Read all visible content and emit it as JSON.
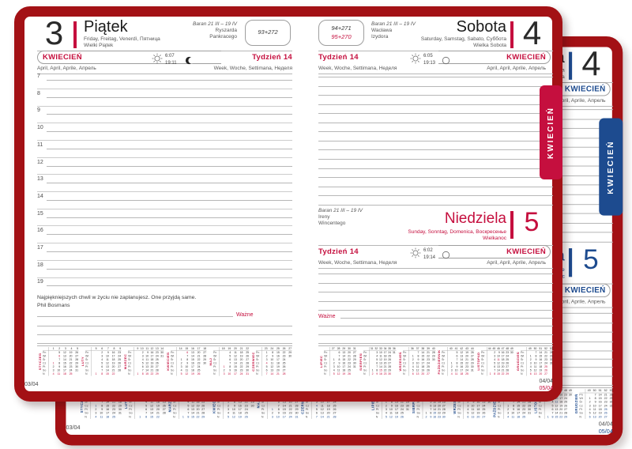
{
  "colors": {
    "cover_border": "#a31115",
    "front_accent": "#c50f3e",
    "back_accent": "#1d4b8f"
  },
  "tab": {
    "label": "KWIECIEŃ"
  },
  "left_page": {
    "day_number": "3",
    "day_name": "Piątek",
    "day_names_langs": "Friday, Freitag, Venerdì, Пятница",
    "holiday": "Wielki Piątek",
    "zodiac": "Baran 21 III – 19 IV",
    "nameday_1": "Ryszarda",
    "nameday_2": "Pankracego",
    "day_of_year": "93+272",
    "month_label": "KWIECIEŃ",
    "month_langs": "April, April, Aprile, Апрель",
    "week_label": "Tydzień 14",
    "week_langs": "Week, Woche, Settimana, Неделя",
    "sunrise": "6:07",
    "sunset": "19:11",
    "hours": [
      7,
      8,
      9,
      10,
      11,
      12,
      13,
      14,
      15,
      16,
      17,
      18,
      19
    ],
    "quote": "Najpiękniejszych chwil w życiu nie zaplanujesz. One przyjdą same.",
    "quote_author": "Phil Bosmans",
    "important_label": "Ważne",
    "footer": "03/04"
  },
  "right_page": {
    "day_of_year_black": "94+271",
    "day_of_year_red": "95+270",
    "zodiac": "Baran 21 III – 19 IV",
    "saturday": {
      "number": "4",
      "name": "Sobota",
      "names_langs": "Saturday, Samstag, Sabato, Суббота",
      "holiday": "Wielka Sobota",
      "nameday_1": "Wacława",
      "nameday_2": "Izydora",
      "sunrise": "6:05",
      "sunset": "19:13"
    },
    "sunday": {
      "number": "5",
      "name": "Niedziela",
      "names_langs": "Sunday, Sonntag, Domenica, Воскресенье",
      "holiday": "Wielkanoc",
      "zodiac": "Baran 21 III – 19 IV",
      "nameday_1": "Ireny",
      "nameday_2": "Wincentego",
      "sunrise": "6:02",
      "sunset": "19:14"
    },
    "month_label": "KWIECIEŃ",
    "month_langs": "April, April, Aprile, Апрель",
    "week_label": "Tydzień 14",
    "week_langs": "Week, Woche, Settimana, Неделя",
    "important_label": "Ważne",
    "footer_black": "04/04",
    "footer_red": "05/04"
  },
  "mini_calendars": {
    "day_labels": [
      "Pn",
      "Wt",
      "Śr",
      "Cz",
      "Pt",
      "So",
      "N"
    ],
    "left_months": [
      {
        "name": "STYCZEŃ",
        "weeks": [
          "1",
          "2",
          "3",
          "4",
          "5"
        ],
        "red": [
          "1",
          "6"
        ],
        "rows": [
          [
            "",
            "5",
            "12",
            "19",
            "26"
          ],
          [
            "",
            "6",
            "13",
            "20",
            "27"
          ],
          [
            "",
            "7",
            "14",
            "21",
            "28"
          ],
          [
            "1",
            "8",
            "15",
            "22",
            "29"
          ],
          [
            "2",
            "9",
            "16",
            "23",
            "30"
          ],
          [
            "3",
            "10",
            "17",
            "24",
            "31"
          ],
          [
            "4",
            "11",
            "18",
            "25",
            ""
          ]
        ]
      },
      {
        "name": "LUTY",
        "weeks": [
          "5",
          "6",
          "7",
          "8",
          "9"
        ],
        "red": [],
        "rows": [
          [
            "",
            "2",
            "9",
            "16",
            "23"
          ],
          [
            "",
            "3",
            "10",
            "17",
            "24"
          ],
          [
            "",
            "4",
            "11",
            "18",
            "25"
          ],
          [
            "",
            "5",
            "12",
            "19",
            "26"
          ],
          [
            "",
            "6",
            "13",
            "20",
            "27"
          ],
          [
            "",
            "7",
            "14",
            "21",
            "28"
          ],
          [
            "1",
            "8",
            "15",
            "22",
            ""
          ]
        ]
      },
      {
        "name": "MARZEC",
        "weeks": [
          "9",
          "10",
          "11",
          "12",
          "13",
          "14"
        ],
        "red": [],
        "rows": [
          [
            "",
            "2",
            "9",
            "16",
            "23",
            "30"
          ],
          [
            "",
            "3",
            "10",
            "17",
            "24",
            "31"
          ],
          [
            "",
            "4",
            "11",
            "18",
            "25",
            ""
          ],
          [
            "",
            "5",
            "12",
            "19",
            "26",
            ""
          ],
          [
            "",
            "6",
            "13",
            "20",
            "27",
            ""
          ],
          [
            "",
            "7",
            "14",
            "21",
            "28",
            ""
          ],
          [
            "1",
            "8",
            "15",
            "22",
            "29",
            ""
          ]
        ]
      },
      {
        "name": "KWIECIEŃ",
        "weeks": [
          "14",
          "15",
          "16",
          "17",
          "18"
        ],
        "red": [
          "6"
        ],
        "rows": [
          [
            "",
            "6",
            "13",
            "20",
            "27"
          ],
          [
            "",
            "7",
            "14",
            "21",
            "28"
          ],
          [
            "1",
            "8",
            "15",
            "22",
            "29"
          ],
          [
            "2",
            "9",
            "16",
            "23",
            "30"
          ],
          [
            "3",
            "10",
            "17",
            "24",
            ""
          ],
          [
            "4",
            "11",
            "18",
            "25",
            ""
          ],
          [
            "5",
            "12",
            "19",
            "26",
            ""
          ]
        ]
      },
      {
        "name": "MAJ",
        "weeks": [
          "18",
          "19",
          "20",
          "21",
          "22"
        ],
        "red": [
          "1"
        ],
        "rows": [
          [
            "",
            "4",
            "11",
            "18",
            "25"
          ],
          [
            "",
            "5",
            "12",
            "19",
            "26"
          ],
          [
            "",
            "6",
            "13",
            "20",
            "27"
          ],
          [
            "",
            "7",
            "14",
            "21",
            "28"
          ],
          [
            "1",
            "8",
            "15",
            "22",
            "29"
          ],
          [
            "2",
            "9",
            "16",
            "23",
            "30"
          ],
          [
            "3",
            "10",
            "17",
            "24",
            "31"
          ]
        ]
      },
      {
        "name": "CZERWIEC",
        "weeks": [
          "23",
          "24",
          "25",
          "26",
          "27"
        ],
        "red": [
          "4"
        ],
        "rows": [
          [
            "1",
            "8",
            "15",
            "22",
            "29"
          ],
          [
            "2",
            "9",
            "16",
            "23",
            "30"
          ],
          [
            "3",
            "10",
            "17",
            "24",
            ""
          ],
          [
            "4",
            "11",
            "18",
            "25",
            ""
          ],
          [
            "5",
            "12",
            "19",
            "26",
            ""
          ],
          [
            "6",
            "13",
            "20",
            "27",
            ""
          ],
          [
            "7",
            "14",
            "21",
            "28",
            ""
          ]
        ]
      }
    ],
    "right_months": [
      {
        "name": "LIPIEC",
        "weeks": [
          "27",
          "28",
          "29",
          "30",
          "31"
        ],
        "red": [],
        "rows": [
          [
            "",
            "6",
            "13",
            "20",
            "27"
          ],
          [
            "",
            "7",
            "14",
            "21",
            "28"
          ],
          [
            "1",
            "8",
            "15",
            "22",
            "29"
          ],
          [
            "2",
            "9",
            "16",
            "23",
            "30"
          ],
          [
            "3",
            "10",
            "17",
            "24",
            "31"
          ],
          [
            "4",
            "11",
            "18",
            "25",
            ""
          ],
          [
            "5",
            "12",
            "19",
            "26",
            ""
          ]
        ]
      },
      {
        "name": "SIERPIEŃ",
        "weeks": [
          "31",
          "32",
          "33",
          "34",
          "35",
          "36"
        ],
        "red": [
          "15"
        ],
        "rows": [
          [
            "",
            "3",
            "10",
            "17",
            "24",
            "31"
          ],
          [
            "",
            "4",
            "11",
            "18",
            "25",
            ""
          ],
          [
            "",
            "5",
            "12",
            "19",
            "26",
            ""
          ],
          [
            "",
            "6",
            "13",
            "20",
            "27",
            ""
          ],
          [
            "",
            "7",
            "14",
            "21",
            "28",
            ""
          ],
          [
            "1",
            "8",
            "15",
            "22",
            "29",
            ""
          ],
          [
            "2",
            "9",
            "16",
            "23",
            "30",
            ""
          ]
        ]
      },
      {
        "name": "WRZESIEŃ",
        "weeks": [
          "36",
          "37",
          "38",
          "39",
          "40"
        ],
        "red": [],
        "rows": [
          [
            "",
            "7",
            "14",
            "21",
            "28"
          ],
          [
            "1",
            "8",
            "15",
            "22",
            "29"
          ],
          [
            "2",
            "9",
            "16",
            "23",
            "30"
          ],
          [
            "3",
            "10",
            "17",
            "24",
            ""
          ],
          [
            "4",
            "11",
            "18",
            "25",
            ""
          ],
          [
            "5",
            "12",
            "19",
            "26",
            ""
          ],
          [
            "6",
            "13",
            "20",
            "27",
            ""
          ]
        ]
      },
      {
        "name": "PAŹDZIERNIK",
        "weeks": [
          "40",
          "41",
          "42",
          "43",
          "44"
        ],
        "red": [],
        "rows": [
          [
            "",
            "5",
            "12",
            "19",
            "26"
          ],
          [
            "",
            "6",
            "13",
            "20",
            "27"
          ],
          [
            "",
            "7",
            "14",
            "21",
            "28"
          ],
          [
            "1",
            "8",
            "15",
            "22",
            "29"
          ],
          [
            "2",
            "9",
            "16",
            "23",
            "30"
          ],
          [
            "3",
            "10",
            "17",
            "24",
            "31"
          ],
          [
            "4",
            "11",
            "18",
            "25",
            ""
          ]
        ]
      },
      {
        "name": "LISTOPAD",
        "weeks": [
          "44",
          "45",
          "46",
          "47",
          "48",
          "49"
        ],
        "red": [
          "11"
        ],
        "rows": [
          [
            "",
            "2",
            "9",
            "16",
            "23",
            "30"
          ],
          [
            "",
            "3",
            "10",
            "17",
            "24",
            ""
          ],
          [
            "",
            "4",
            "11",
            "18",
            "25",
            ""
          ],
          [
            "",
            "5",
            "12",
            "19",
            "26",
            ""
          ],
          [
            "",
            "6",
            "13",
            "20",
            "27",
            ""
          ],
          [
            "",
            "7",
            "14",
            "21",
            "28",
            ""
          ],
          [
            "1",
            "8",
            "15",
            "22",
            "29",
            ""
          ]
        ]
      },
      {
        "name": "GRUDZIEŃ",
        "weeks": [
          "49",
          "50",
          "51",
          "52",
          "53"
        ],
        "red": [
          "25",
          "26"
        ],
        "rows": [
          [
            "",
            "7",
            "14",
            "21",
            "28"
          ],
          [
            "1",
            "8",
            "15",
            "22",
            "29"
          ],
          [
            "2",
            "9",
            "16",
            "23",
            "30"
          ],
          [
            "3",
            "10",
            "17",
            "24",
            "31"
          ],
          [
            "4",
            "11",
            "18",
            "25",
            ""
          ],
          [
            "5",
            "12",
            "19",
            "26",
            ""
          ],
          [
            "6",
            "13",
            "20",
            "27",
            ""
          ]
        ]
      }
    ]
  }
}
